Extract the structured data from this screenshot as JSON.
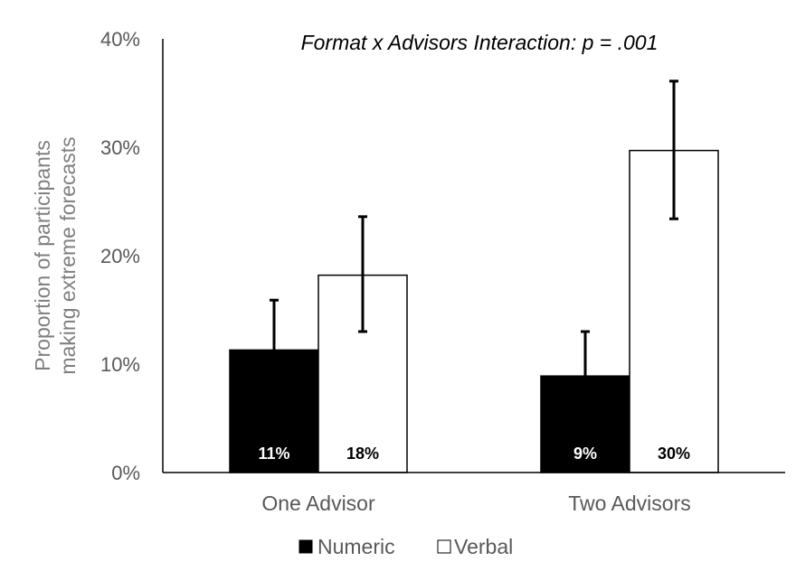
{
  "chart_data": {
    "type": "bar",
    "title": "Format x Advisors Interaction: p = .001",
    "ylabel_lines": [
      "Proportion of participants",
      "making extreme forecasts"
    ],
    "categories": [
      "One Advisor",
      "Two Advisors"
    ],
    "ylim": [
      0,
      0.4
    ],
    "yticks": [
      {
        "value": 0.0,
        "label": "0%"
      },
      {
        "value": 0.1,
        "label": "10%"
      },
      {
        "value": 0.2,
        "label": "20%"
      },
      {
        "value": 0.3,
        "label": "30%"
      },
      {
        "value": 0.4,
        "label": "40%"
      }
    ],
    "grid": false,
    "legend_position": "bottom",
    "series": [
      {
        "name": "Numeric",
        "fill": "#000000",
        "label_color": "#ffffff",
        "values": [
          0.113,
          0.089
        ],
        "value_labels": [
          "11%",
          "9%"
        ],
        "error_low": [
          0.064,
          0.042
        ],
        "error_high": [
          0.159,
          0.13
        ]
      },
      {
        "name": "Verbal",
        "fill": "#ffffff",
        "label_color": "#000000",
        "values": [
          0.182,
          0.297
        ],
        "value_labels": [
          "18%",
          "30%"
        ],
        "error_low": [
          0.13,
          0.234
        ],
        "error_high": [
          0.236,
          0.361
        ]
      }
    ]
  }
}
